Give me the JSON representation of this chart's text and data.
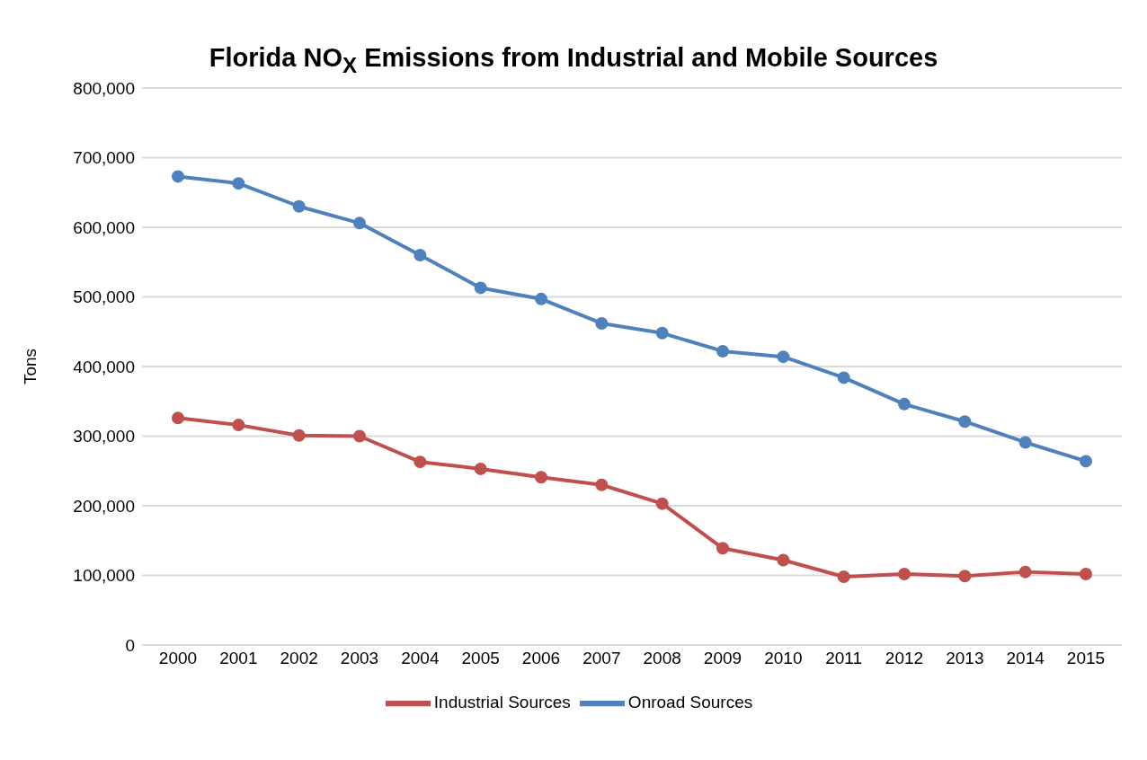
{
  "chart_data": {
    "type": "line",
    "title": "Florida NO$_{X}$ Emissions from Industrial and Mobile Sources",
    "ylabel": "Tons",
    "categories": [
      "2000",
      "2001",
      "2002",
      "2003",
      "2004",
      "2005",
      "2006",
      "2007",
      "2008",
      "2009",
      "2010",
      "2011",
      "2012",
      "2013",
      "2014",
      "2015"
    ],
    "series": [
      {
        "name": "Industrial Sources",
        "color": "#c0504d",
        "values": [
          326000,
          316000,
          301000,
          300000,
          263000,
          253000,
          241000,
          230000,
          203000,
          139000,
          122000,
          98000,
          102000,
          99000,
          105000,
          102000
        ]
      },
      {
        "name": "Onroad Sources",
        "color": "#4f81bd",
        "values": [
          673000,
          663000,
          630000,
          606000,
          560000,
          513000,
          497000,
          462000,
          448000,
          422000,
          414000,
          384000,
          346000,
          321000,
          291000,
          264000
        ]
      }
    ],
    "ylim": [
      0,
      800000
    ],
    "yticks": [
      0,
      {
        "value": 100000,
        "label": "100,000"
      },
      {
        "value": 200000,
        "label": "200,000"
      },
      {
        "value": 300000,
        "label": "300,000"
      },
      {
        "value": 400000,
        "label": "400,000"
      },
      {
        "value": 500000,
        "label": "500,000"
      },
      {
        "value": 600000,
        "label": "600,000"
      },
      {
        "value": 700000,
        "label": "700,000"
      },
      {
        "value": 800000,
        "label": "800,000"
      }
    ],
    "grid": "y",
    "legend": "bottom",
    "marker": "circle",
    "line_style": "solid"
  }
}
